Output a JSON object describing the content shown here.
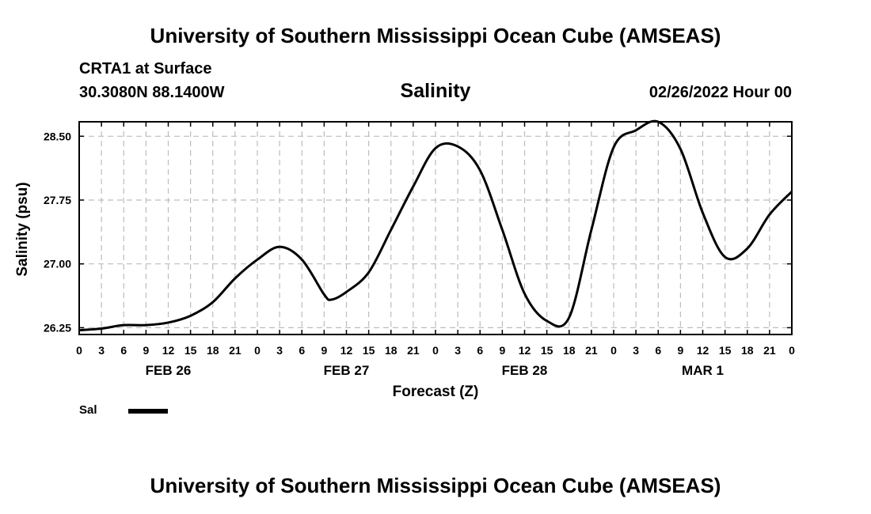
{
  "header": {
    "title": "University of Southern Mississippi Ocean Cube (AMSEAS)",
    "station": "CRTA1 at Surface",
    "coordinates": "30.3080N  88.1400W",
    "variable": "Salinity",
    "datetime": "02/26/2022 Hour 00"
  },
  "footer": {
    "title": "University of Southern Mississippi Ocean Cube (AMSEAS)"
  },
  "legend": {
    "label": "Sal"
  },
  "chart_data": {
    "type": "line",
    "title": "Salinity",
    "xlabel": "Forecast (Z)",
    "ylabel": "Salinity (psu)",
    "xlim": [
      0,
      96
    ],
    "ylim": [
      26.17,
      28.67
    ],
    "grid": true,
    "yticks": [
      26.25,
      27.0,
      27.75,
      28.5
    ],
    "ytick_labels": [
      "26.25",
      "27.00",
      "27.75",
      "28.50"
    ],
    "xticks": [
      0,
      3,
      6,
      9,
      12,
      15,
      18,
      21,
      24,
      27,
      30,
      33,
      36,
      39,
      42,
      45,
      48,
      51,
      54,
      57,
      60,
      63,
      66,
      69,
      72,
      75,
      78,
      81,
      84,
      87,
      90,
      93,
      96
    ],
    "xtick_labels": [
      "0",
      "3",
      "6",
      "9",
      "12",
      "15",
      "18",
      "21",
      "0",
      "3",
      "6",
      "9",
      "12",
      "15",
      "18",
      "21",
      "0",
      "3",
      "6",
      "9",
      "12",
      "15",
      "18",
      "21",
      "0",
      "3",
      "6",
      "9",
      "12",
      "15",
      "18",
      "21",
      "0"
    ],
    "day_labels": [
      {
        "hour": 12,
        "label": "FEB 26"
      },
      {
        "hour": 36,
        "label": "FEB 27"
      },
      {
        "hour": 60,
        "label": "FEB 28"
      },
      {
        "hour": 84,
        "label": "MAR 1"
      }
    ],
    "series": [
      {
        "name": "Sal",
        "x": [
          0,
          3,
          6,
          9,
          12,
          15,
          18,
          21,
          24,
          27,
          30,
          33,
          34,
          36,
          39,
          42,
          45,
          48,
          51,
          54,
          57,
          60,
          63,
          66,
          69,
          72,
          75,
          78,
          81,
          84,
          87,
          90,
          93,
          96
        ],
        "values": [
          26.22,
          26.24,
          26.28,
          26.28,
          26.31,
          26.39,
          26.55,
          26.83,
          27.05,
          27.2,
          27.05,
          26.64,
          26.58,
          26.67,
          26.9,
          27.4,
          27.91,
          28.36,
          28.38,
          28.1,
          27.4,
          26.65,
          26.33,
          26.37,
          27.4,
          28.37,
          28.57,
          28.67,
          28.35,
          27.6,
          27.08,
          27.18,
          27.58,
          27.85
        ]
      }
    ]
  }
}
